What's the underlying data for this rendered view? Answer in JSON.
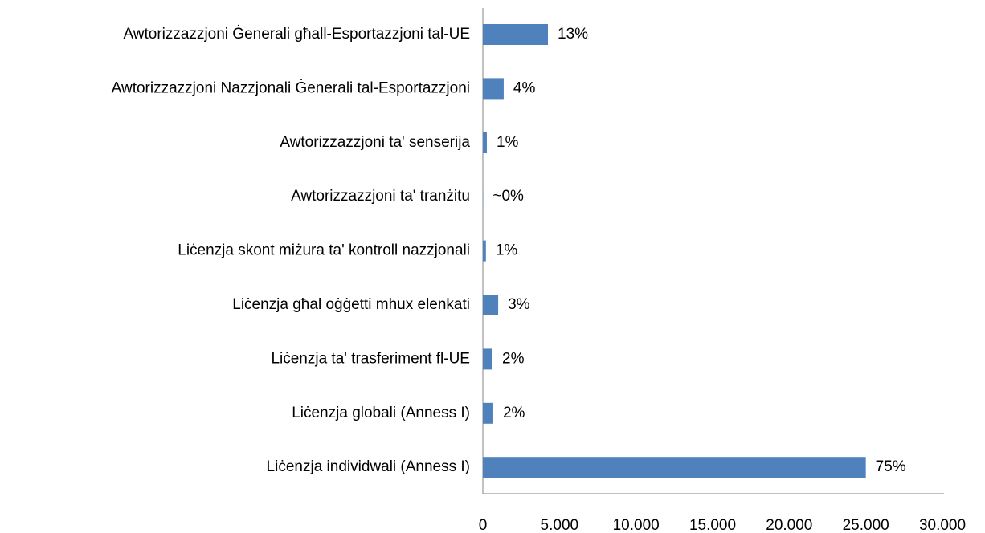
{
  "chart_data": {
    "type": "hbar",
    "categories": [
      "Awtorizzazzjoni Ġenerali għall-Esportazzjoni tal-UE",
      "Awtorizzazzjoni Nazzjonali Ġenerali tal-Esportazzjoni",
      "Awtorizzazzjoni ta' senserija",
      "Awtorizzazzjoni ta' tranżitu",
      "Liċenzja skont miżura ta' kontroll nazzjonali",
      "Liċenzja għal oġġetti mhux elenkati",
      "Liċenzja ta' trasferiment fl-UE",
      "Liċenzja globali (Anness I)",
      "Liċenzja individwali (Anness I)"
    ],
    "values": [
      4250,
      1360,
      260,
      20,
      200,
      1000,
      630,
      680,
      25000
    ],
    "value_labels": [
      "13%",
      "4%",
      "1%",
      "~0%",
      "1%",
      "3%",
      "2%",
      "2%",
      "75%"
    ],
    "color": "#4f81bd",
    "xlim": [
      0,
      30000
    ],
    "xticks": [
      0,
      {
        "value": 5000,
        "label": "5.000"
      },
      {
        "value": 10000,
        "label": "10.000"
      },
      {
        "value": 15000,
        "label": "15.000"
      },
      {
        "value": 20000,
        "label": "20.000"
      },
      {
        "value": 25000,
        "label": "25.000"
      },
      {
        "value": 30000,
        "label": "30.000"
      }
    ],
    "grid": false
  }
}
